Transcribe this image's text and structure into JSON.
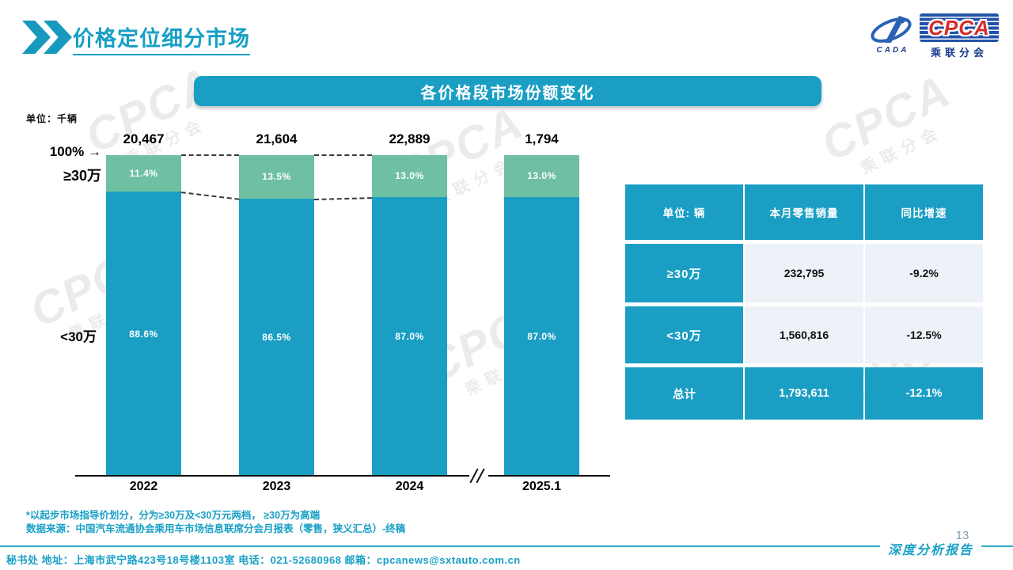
{
  "page": {
    "title": "价格定位细分市场",
    "page_number": "13",
    "report_tag": "深度分析报告",
    "footer": "秘书处  地址：上海市武宁路423号18号楼1103室  电话：021-52680968   邮箱：cpcanews@sxtauto.com.cn"
  },
  "logo": {
    "cpca": "CPCA",
    "cada": "CADA",
    "subtitle": "乘联分会"
  },
  "banner": {
    "title": "各价格段市场份额变化"
  },
  "chart_data": {
    "type": "bar",
    "stacked": true,
    "title": "各价格段市场份额变化",
    "unit_label": "单位：千辆",
    "axis_top_label": "100% →",
    "categories": [
      "2022",
      "2023",
      "2024",
      "2025.1"
    ],
    "totals": [
      "20,467",
      "21,604",
      "22,889",
      "1,794"
    ],
    "series": [
      {
        "name": "≥30万",
        "color": "#6fc0a2",
        "values": [
          11.4,
          13.5,
          13.0,
          13.0
        ],
        "labels": [
          "11.4%",
          "13.5%",
          "13.0%",
          "13.0%"
        ]
      },
      {
        "name": "<30万",
        "color": "#1a9ec4",
        "values": [
          88.6,
          86.5,
          87.0,
          87.0
        ],
        "labels": [
          "88.6%",
          "86.5%",
          "87.0%",
          "87.0%"
        ]
      }
    ],
    "ylim": [
      0,
      100
    ],
    "axis_break_between": [
      "2024",
      "2025.1"
    ],
    "legend_position": "left-axis"
  },
  "table": {
    "headers": [
      "单位: 辆",
      "本月零售销量",
      "同比增速"
    ],
    "rows": [
      {
        "label": "≥30万",
        "sales": "232,795",
        "yoy": "-9.2%"
      },
      {
        "label": "<30万",
        "sales": "1,560,816",
        "yoy": "-12.5%"
      },
      {
        "label": "总计",
        "sales": "1,793,611",
        "yoy": "-12.1%"
      }
    ]
  },
  "footnotes": [
    "*以起步市场指导价划分，分为≥30万及<30万元两档， ≥30万为高端",
    "数据来源：中国汽车流通协会乘用车市场信息联席分会月报表（零售，狭义汇总）-终稿"
  ],
  "watermark": {
    "text": "CPCA",
    "subtext": "乘联分会"
  },
  "colors": {
    "teal": "#1a9ec4",
    "green": "#6fc0a2",
    "accent_text": "#17a0c5"
  }
}
